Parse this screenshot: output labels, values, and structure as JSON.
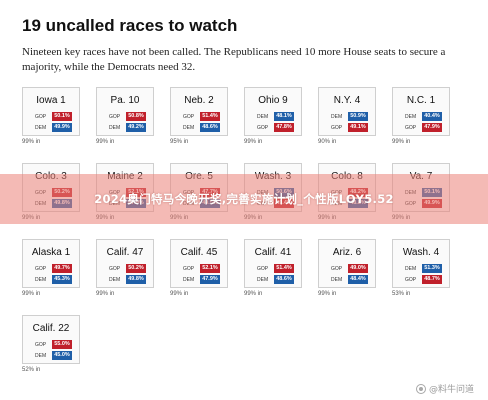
{
  "headline": "19 uncalled races to watch",
  "dek": "Nineteen key races have not been called. The Republicans need 10 more House seats to secure a majority, while the Democrats need 32.",
  "colors": {
    "gop": "#c0202b",
    "dem": "#1f5fa8"
  },
  "races": [
    {
      "name": "Iowa 1",
      "top_party": "GOP",
      "top_pct": "50.1%",
      "top_class": "gop",
      "bottom_party": "DEM",
      "bottom_pct": "49.9%",
      "bottom_class": "dem",
      "reporting": "99% in"
    },
    {
      "name": "Pa. 10",
      "top_party": "GOP",
      "top_pct": "50.8%",
      "top_class": "gop",
      "bottom_party": "DEM",
      "bottom_pct": "49.2%",
      "bottom_class": "dem",
      "reporting": "99% in"
    },
    {
      "name": "Neb. 2",
      "top_party": "GOP",
      "top_pct": "51.4%",
      "top_class": "gop",
      "bottom_party": "DEM",
      "bottom_pct": "48.6%",
      "bottom_class": "dem",
      "reporting": "95% in"
    },
    {
      "name": "Ohio 9",
      "top_party": "DEM",
      "top_pct": "48.1%",
      "top_class": "dem",
      "bottom_party": "GOP",
      "bottom_pct": "47.8%",
      "bottom_class": "gop",
      "reporting": "99% in"
    },
    {
      "name": "N.Y. 4",
      "top_party": "DEM",
      "top_pct": "50.9%",
      "top_class": "dem",
      "bottom_party": "GOP",
      "bottom_pct": "49.1%",
      "bottom_class": "gop",
      "reporting": "90% in"
    },
    {
      "name": "N.C. 1",
      "top_party": "DEM",
      "top_pct": "40.4%",
      "top_class": "dem",
      "bottom_party": "GOP",
      "bottom_pct": "47.9%",
      "bottom_class": "gop",
      "reporting": "99% in"
    },
    {
      "name": "Colo. 3",
      "top_party": "GOP",
      "top_pct": "50.2%",
      "top_class": "gop",
      "bottom_party": "DEM",
      "bottom_pct": "49.8%",
      "bottom_class": "dem",
      "reporting": "99% in"
    },
    {
      "name": "Maine 2",
      "top_party": "GOP",
      "top_pct": "52.1%",
      "top_class": "gop",
      "bottom_party": "DEM",
      "bottom_pct": "47.9%",
      "bottom_class": "dem",
      "reporting": "99% in"
    },
    {
      "name": "Ore. 5",
      "top_party": "GOP",
      "top_pct": "47.7%",
      "top_class": "gop",
      "bottom_party": "DEM",
      "bottom_pct": "49.5%",
      "bottom_class": "dem",
      "reporting": "99% in"
    },
    {
      "name": "Wash. 3",
      "top_party": "DEM",
      "top_pct": "50.6%",
      "top_class": "dem",
      "bottom_party": "GOP",
      "bottom_pct": "49.4%",
      "bottom_class": "gop",
      "reporting": "99% in"
    },
    {
      "name": "Colo. 8",
      "top_party": "GOP",
      "top_pct": "48.2%",
      "top_class": "gop",
      "bottom_party": "DEM",
      "bottom_pct": "48.8%",
      "bottom_class": "dem",
      "reporting": "99% in"
    },
    {
      "name": "Va. 7",
      "top_party": "DEM",
      "top_pct": "50.1%",
      "top_class": "dem",
      "bottom_party": "GOP",
      "bottom_pct": "49.9%",
      "bottom_class": "gop",
      "reporting": "99% in"
    },
    {
      "name": "Alaska 1",
      "top_party": "GOP",
      "top_pct": "49.7%",
      "top_class": "gop",
      "bottom_party": "DEM",
      "bottom_pct": "45.3%",
      "bottom_class": "dem",
      "reporting": "99% in"
    },
    {
      "name": "Calif. 47",
      "top_party": "GOP",
      "top_pct": "50.2%",
      "top_class": "gop",
      "bottom_party": "DEM",
      "bottom_pct": "49.8%",
      "bottom_class": "dem",
      "reporting": "99% in"
    },
    {
      "name": "Calif. 45",
      "top_party": "GOP",
      "top_pct": "52.1%",
      "top_class": "gop",
      "bottom_party": "DEM",
      "bottom_pct": "47.9%",
      "bottom_class": "dem",
      "reporting": "99% in"
    },
    {
      "name": "Calif. 41",
      "top_party": "GOP",
      "top_pct": "51.4%",
      "top_class": "gop",
      "bottom_party": "DEM",
      "bottom_pct": "48.6%",
      "bottom_class": "dem",
      "reporting": "99% in"
    },
    {
      "name": "Ariz. 6",
      "top_party": "GOP",
      "top_pct": "49.0%",
      "top_class": "gop",
      "bottom_party": "DEM",
      "bottom_pct": "48.4%",
      "bottom_class": "dem",
      "reporting": "99% in"
    },
    {
      "name": "Wash. 4",
      "top_party": "DEM",
      "top_pct": "51.3%",
      "top_class": "dem",
      "bottom_party": "GOP",
      "bottom_pct": "48.7%",
      "bottom_class": "gop",
      "reporting": "53% in"
    },
    {
      "name": "Calif. 22",
      "top_party": "GOP",
      "top_pct": "55.0%",
      "top_class": "gop",
      "bottom_party": "DEM",
      "bottom_pct": "45.0%",
      "bottom_class": "dem",
      "reporting": "52% in"
    }
  ],
  "banner": {
    "text": "2024奥门特马今晚开奖,完善实施计划_个性版LOY5.52"
  },
  "watermark": {
    "text": "@料牛问道",
    "icon": "watermark-logo-icon"
  }
}
